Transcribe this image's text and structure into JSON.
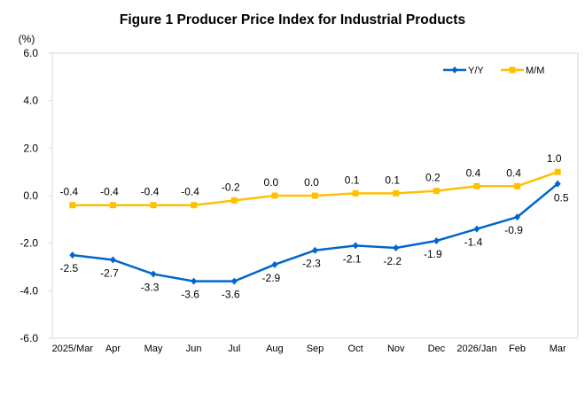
{
  "chart_data": {
    "type": "line",
    "title": "Figure 1 Producer Price Index for Industrial Products",
    "ylabel": "(%)",
    "xlabel": "",
    "ylim": [
      -6.0,
      6.0
    ],
    "yticks": [
      "6.0",
      "4.0",
      "2.0",
      "0.0",
      "-2.0",
      "-4.0",
      "-6.0"
    ],
    "ytick_values": [
      6,
      4,
      2,
      0,
      -2,
      -4,
      -6
    ],
    "grid": false,
    "legend_position": "top-right",
    "categories": [
      "2025/Mar",
      "Apr",
      "May",
      "Jun",
      "Jul",
      "Aug",
      "Sep",
      "Oct",
      "Nov",
      "Dec",
      "2026/Jan",
      "Feb",
      "Mar"
    ],
    "series": [
      {
        "name": "Y/Y",
        "color": "#0066CC",
        "marker": "diamond",
        "label_position": "below",
        "values": [
          -2.5,
          -2.7,
          -3.3,
          -3.6,
          -3.6,
          -2.9,
          -2.3,
          -2.1,
          -2.2,
          -1.9,
          -1.4,
          -0.9,
          0.5
        ],
        "labels": [
          "-2.5",
          "-2.7",
          "-3.3",
          "-3.6",
          "-3.6",
          "-2.9",
          "-2.3",
          "-2.1",
          "-2.2",
          "-1.9",
          "-1.4",
          "-0.9",
          "0.5"
        ]
      },
      {
        "name": "M/M",
        "color": "#FFC000",
        "marker": "square",
        "label_position": "above",
        "values": [
          -0.4,
          -0.4,
          -0.4,
          -0.4,
          -0.2,
          0.0,
          0.0,
          0.1,
          0.1,
          0.2,
          0.4,
          0.4,
          1.0
        ],
        "labels": [
          "-0.4",
          "-0.4",
          "-0.4",
          "-0.4",
          "-0.2",
          "0.0",
          "0.0",
          "0.1",
          "0.1",
          "0.2",
          "0.4",
          "0.4",
          "1.0"
        ]
      }
    ]
  }
}
